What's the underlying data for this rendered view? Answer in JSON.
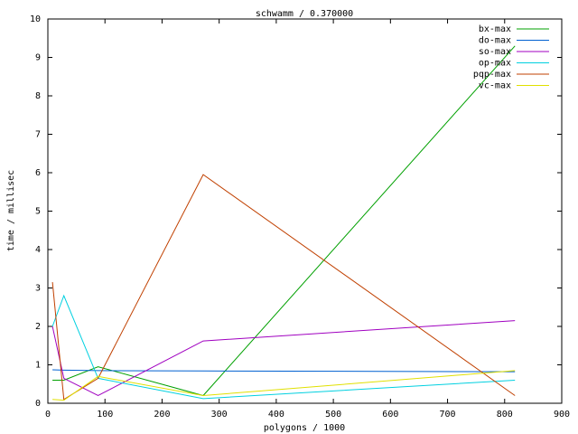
{
  "chart_data": {
    "type": "line",
    "title": "schwamm / 0.370000",
    "x_label": "polygons / 1000",
    "y_label": "time / millisec",
    "x": [
      8,
      28,
      88,
      272,
      818
    ],
    "series": [
      {
        "name": "bx-max",
        "color": "#00a000",
        "values": [
          0.6,
          0.6,
          0.95,
          0.2,
          9.3
        ]
      },
      {
        "name": "do-max",
        "color": "#0060d0",
        "values": [
          0.87,
          0.86,
          0.85,
          0.84,
          0.82
        ]
      },
      {
        "name": "so-max",
        "color": "#a000c0",
        "values": [
          2.0,
          0.65,
          0.2,
          1.62,
          2.15
        ]
      },
      {
        "name": "op-max",
        "color": "#00d0e0",
        "values": [
          2.0,
          2.8,
          0.65,
          0.12,
          0.6
        ]
      },
      {
        "name": "pqp-max",
        "color": "#c04000",
        "values": [
          3.15,
          0.1,
          0.65,
          5.95,
          0.2
        ]
      },
      {
        "name": "vc-max",
        "color": "#e0e000",
        "values": [
          0.1,
          0.08,
          0.7,
          0.2,
          0.85
        ]
      }
    ],
    "xlim": [
      0,
      900
    ],
    "xticks": [
      0,
      100,
      200,
      300,
      400,
      500,
      600,
      700,
      800,
      900
    ],
    "ylim": [
      0,
      10
    ],
    "yticks": [
      0,
      1,
      2,
      3,
      4,
      5,
      6,
      7,
      8,
      9,
      10
    ],
    "legend": "top-right"
  }
}
